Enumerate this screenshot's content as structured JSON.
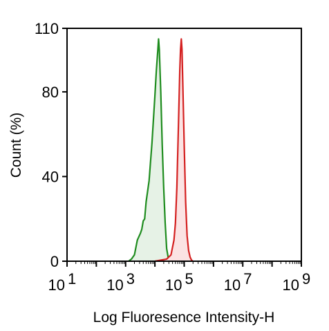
{
  "chart_data": {
    "type": "area",
    "title": "",
    "xlabel": "Log Fluoresence Intensity-H",
    "ylabel": "Count  (%)",
    "x_scale": "log10",
    "xlim": [
      10,
      1000000000
    ],
    "ylim": [
      0,
      110
    ],
    "x_ticks": [
      {
        "base": "10",
        "exp": "1",
        "value": 10
      },
      {
        "base": "10",
        "exp": "3",
        "value": 1000
      },
      {
        "base": "10",
        "exp": "5",
        "value": 100000
      },
      {
        "base": "10",
        "exp": "7",
        "value": 10000000
      },
      {
        "base": "10",
        "exp": "9",
        "value": 1000000000
      }
    ],
    "y_ticks": [
      "0",
      "40",
      "80",
      "110"
    ],
    "y_tick_values": [
      0,
      40,
      80,
      110
    ],
    "grid": false,
    "legend": "none",
    "series": [
      {
        "color": "#1e8c1e",
        "fill": "#e6f2e6",
        "points": [
          [
            1259,
            0
          ],
          [
            1585,
            1
          ],
          [
            1995,
            3
          ],
          [
            2512,
            10
          ],
          [
            3162,
            13
          ],
          [
            3548,
            15
          ],
          [
            3981,
            19
          ],
          [
            4467,
            20
          ],
          [
            5012,
            28
          ],
          [
            6310,
            38
          ],
          [
            7943,
            56
          ],
          [
            10000,
            78
          ],
          [
            11220,
            90
          ],
          [
            12589,
            100
          ],
          [
            13335,
            105
          ],
          [
            14125,
            100
          ],
          [
            15849,
            80
          ],
          [
            17783,
            55
          ],
          [
            19953,
            35
          ],
          [
            22387,
            18
          ],
          [
            25119,
            6
          ],
          [
            28184,
            2
          ],
          [
            31623,
            0
          ]
        ]
      },
      {
        "color": "#d42020",
        "fill": "#fbe3e3",
        "points": [
          [
            10000,
            0
          ],
          [
            15849,
            0.5
          ],
          [
            25119,
            1
          ],
          [
            35481,
            3
          ],
          [
            44668,
            10
          ],
          [
            50119,
            18
          ],
          [
            56234,
            35
          ],
          [
            63096,
            62
          ],
          [
            70795,
            90
          ],
          [
            74989,
            100
          ],
          [
            79433,
            105
          ],
          [
            84140,
            100
          ],
          [
            89125,
            85
          ],
          [
            100000,
            55
          ],
          [
            112202,
            28
          ],
          [
            125893,
            12
          ],
          [
            141254,
            5
          ],
          [
            158489,
            2
          ],
          [
            177828,
            0.5
          ],
          [
            199526,
            0
          ]
        ]
      }
    ]
  }
}
